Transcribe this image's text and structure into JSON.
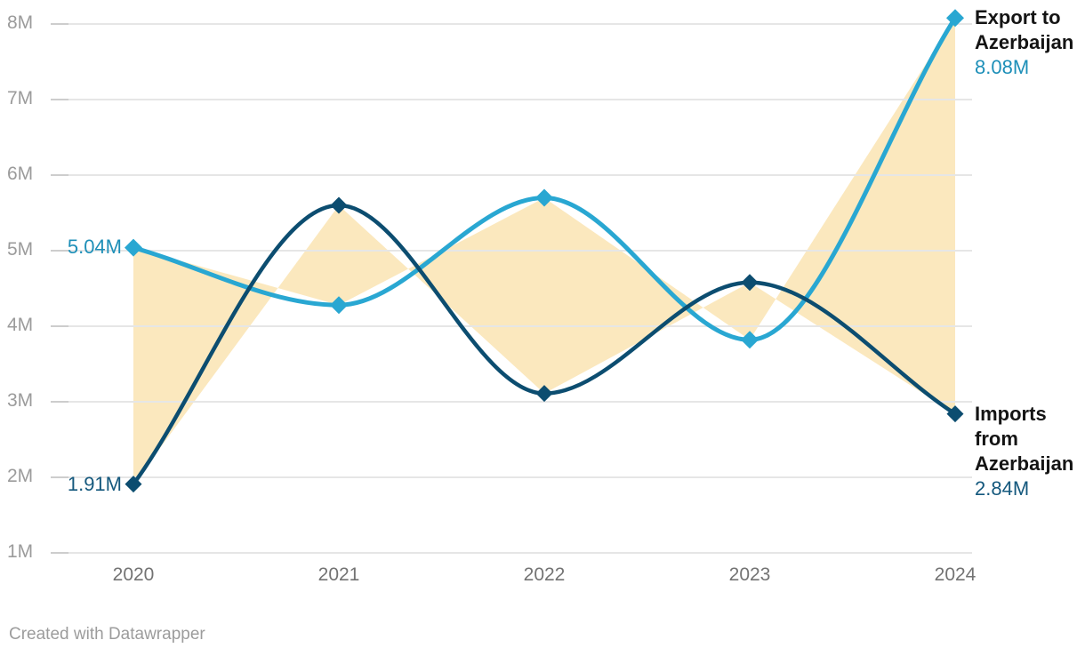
{
  "footer": {
    "text": "Created with Datawrapper"
  },
  "chart_data": {
    "type": "line",
    "title": "",
    "categories": [
      "2020",
      "2021",
      "2022",
      "2023",
      "2024"
    ],
    "series": [
      {
        "name": "Export to Azerbaijan",
        "values": [
          5.04,
          4.28,
          5.7,
          3.82,
          8.08
        ],
        "color": "#29A7D2",
        "label_color": "#1D8FB8",
        "start_value_label": "5.04M",
        "end_value_label": "8.08M"
      },
      {
        "name": "Imports from Azerbaijan",
        "values": [
          1.91,
          5.6,
          3.11,
          4.58,
          2.84
        ],
        "color": "#0C4D70",
        "label_color": "#14587D",
        "start_value_label": "1.91M",
        "end_value_label": "2.84M"
      }
    ],
    "band_between_series": {
      "color": "#FBE8BE"
    },
    "y_axis": {
      "ticks": [
        {
          "value": 8,
          "label": "8M"
        },
        {
          "value": 7,
          "label": "7M"
        },
        {
          "value": 6,
          "label": "6M"
        },
        {
          "value": 5,
          "label": "5M"
        },
        {
          "value": 4,
          "label": "4M"
        },
        {
          "value": 3,
          "label": "3M"
        },
        {
          "value": 2,
          "label": "2M"
        },
        {
          "value": 1,
          "label": "1M"
        }
      ],
      "ylim": [
        1,
        8
      ],
      "grid": true
    },
    "x_axis": {
      "tick_labels": [
        "2020",
        "2021",
        "2022",
        "2023",
        "2024"
      ]
    },
    "legend_position": "direct-line-end-labels",
    "interpolation": "monotone",
    "xlabel": "",
    "ylabel": ""
  }
}
